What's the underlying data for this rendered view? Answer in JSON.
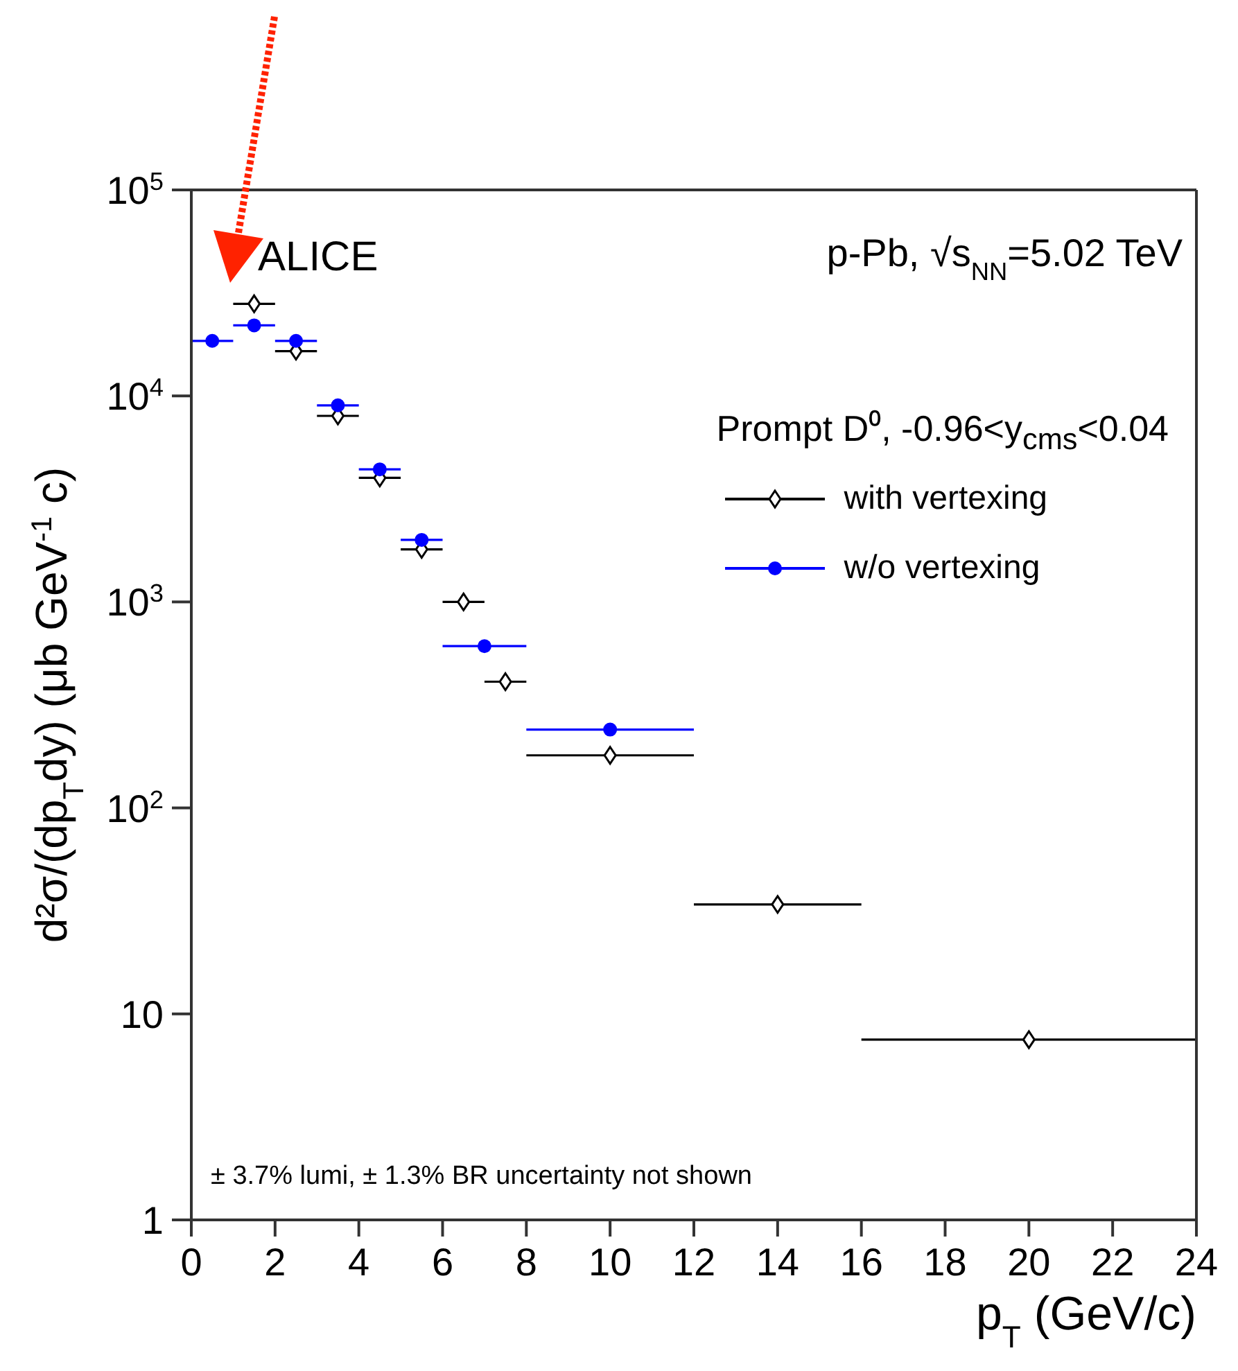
{
  "chart_data": {
    "type": "scatter",
    "xlabel": "p$_{T}$ (GeV/c)",
    "ylabel": "d²σ/(dp$_{T}$dy) (μb GeV$^{-1}$ c)",
    "legend_title": "Prompt D⁰, -0.96<y$_{cms}$<0.04",
    "annotations": [
      "ALICE",
      "p-Pb, √s$_{NN}$=5.02 TeV",
      "± 3.7% lumi, ± 1.3% BR uncertainty not shown"
    ],
    "series": [
      {
        "name": "with vertexing",
        "color": "#000000",
        "marker": "diamond",
        "x": [
          1.5,
          2.5,
          3.5,
          4.5,
          5.5,
          6.5,
          7.5,
          10,
          14,
          20
        ],
        "values": [
          28000,
          16500,
          8000,
          4000,
          1800,
          1000,
          410,
          180,
          34,
          7.5
        ],
        "xerrors": [
          0.5,
          0.5,
          0.5,
          0.5,
          0.5,
          0.5,
          0.5,
          2,
          2,
          4
        ]
      },
      {
        "name": "w/o vertexing",
        "color": "#0000ff",
        "marker": "circle",
        "x": [
          0.5,
          1.5,
          2.5,
          3.5,
          4.5,
          5.5,
          7,
          10
        ],
        "values": [
          18500,
          22000,
          18500,
          9000,
          4400,
          2000,
          610,
          240
        ],
        "xerrors": [
          0.5,
          0.5,
          0.5,
          0.5,
          0.5,
          0.5,
          1,
          2
        ]
      }
    ],
    "xlim": [
      0,
      24
    ],
    "xticks": [
      0,
      2,
      4,
      6,
      8,
      10,
      12,
      14,
      16,
      18,
      20,
      22,
      24
    ],
    "ylim": [
      1,
      100000
    ],
    "yticks": [
      1,
      10,
      {
        "value": 100,
        "label": "10$^{2}$"
      },
      {
        "value": 1000,
        "label": "10$^{3}$"
      },
      {
        "value": 10000,
        "label": "10$^{4}$"
      },
      {
        "value": 100000,
        "label": "10$^{5}$"
      }
    ],
    "log": "y",
    "legend": "top right"
  }
}
